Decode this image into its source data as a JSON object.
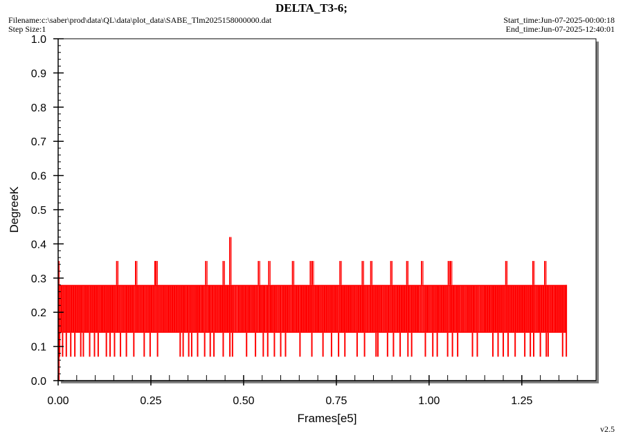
{
  "header": {
    "title": "DELTA_T3-6;",
    "filename": "Filename:c:\\saber\\prod\\data\\QL\\data\\plot_data\\SABE_Tlm2025158000000.dat",
    "step_size": "Step Size:1",
    "start_time": "Start_time:Jun-07-2025-00:00:18",
    "end_time": "End_time:Jun-07-2025-12:40:01"
  },
  "footer": {
    "version": "v2.5"
  },
  "colors": {
    "series": "#ff0000",
    "plot_bg": "#ffffff",
    "shadow": "#808080"
  },
  "chart_data": {
    "type": "line",
    "title": "DELTA_T3-6;",
    "xlabel": "Frames[e5]",
    "ylabel": "DegreeK",
    "xlim": [
      0.0,
      1.45
    ],
    "ylim": [
      0.0,
      1.0
    ],
    "x_ticks": [
      "0.00",
      "0.25",
      "0.50",
      "0.75",
      "1.00",
      "1.25"
    ],
    "y_ticks": [
      "0.0",
      "0.1",
      "0.2",
      "0.3",
      "0.4",
      "0.5",
      "0.6",
      "0.7",
      "0.8",
      "0.9",
      "1.0"
    ],
    "grid": false,
    "series": [
      {
        "color": "#ff0000",
        "x_range": [
          0.0,
          1.37
        ],
        "discrete_levels": [
          0.0,
          0.07,
          0.14,
          0.21,
          0.28,
          0.35,
          0.42
        ],
        "dense_band": [
          0.14,
          0.28
        ],
        "spikes_high": [
          {
            "x": 0.158,
            "y": 0.35
          },
          {
            "x": 0.209,
            "y": 0.35
          },
          {
            "x": 0.261,
            "y": 0.35
          },
          {
            "x": 0.264,
            "y": 0.35
          },
          {
            "x": 0.398,
            "y": 0.35
          },
          {
            "x": 0.445,
            "y": 0.35
          },
          {
            "x": 0.463,
            "y": 0.42
          },
          {
            "x": 0.54,
            "y": 0.35
          },
          {
            "x": 0.568,
            "y": 0.35
          },
          {
            "x": 0.632,
            "y": 0.35
          },
          {
            "x": 0.68,
            "y": 0.35
          },
          {
            "x": 0.685,
            "y": 0.35
          },
          {
            "x": 0.76,
            "y": 0.35
          },
          {
            "x": 0.82,
            "y": 0.35
          },
          {
            "x": 0.843,
            "y": 0.35
          },
          {
            "x": 0.897,
            "y": 0.35
          },
          {
            "x": 0.94,
            "y": 0.35
          },
          {
            "x": 0.98,
            "y": 0.35
          },
          {
            "x": 1.052,
            "y": 0.35
          },
          {
            "x": 1.058,
            "y": 0.35
          },
          {
            "x": 1.207,
            "y": 0.35
          },
          {
            "x": 1.28,
            "y": 0.35
          },
          {
            "x": 1.312,
            "y": 0.35
          }
        ],
        "spikes_low": [
          0.004,
          0.012,
          0.022,
          0.034,
          0.045,
          0.061,
          0.068,
          0.085,
          0.098,
          0.108,
          0.13,
          0.14,
          0.152,
          0.168,
          0.184,
          0.204,
          0.232,
          0.248,
          0.268,
          0.329,
          0.337,
          0.352,
          0.36,
          0.376,
          0.395,
          0.41,
          0.42,
          0.445,
          0.463,
          0.47,
          0.508,
          0.532,
          0.553,
          0.565,
          0.583,
          0.6,
          0.613,
          0.652,
          0.684,
          0.714,
          0.737,
          0.756,
          0.773,
          0.806,
          0.826,
          0.857,
          0.862,
          0.888,
          0.904,
          0.922,
          0.943,
          0.953,
          0.99,
          1.01,
          1.022,
          1.05,
          1.063,
          1.077,
          1.117,
          1.13,
          1.172,
          1.186,
          1.2,
          1.213,
          1.232,
          1.258,
          1.273,
          1.282,
          1.3,
          1.316,
          1.321,
          1.36
        ],
        "spikes_zero": [
          0.002
        ]
      }
    ]
  }
}
